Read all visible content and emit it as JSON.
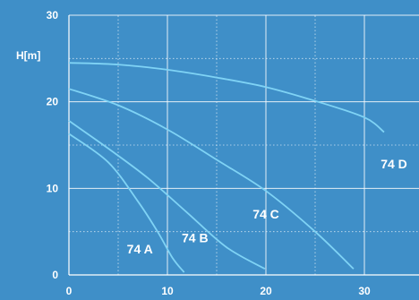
{
  "chart_data": {
    "type": "line",
    "ylabel": "H[m]",
    "xlabel": "",
    "xlim": [
      0,
      32
    ],
    "ylim": [
      0,
      30
    ],
    "x_ticks": [
      0,
      10,
      20,
      30
    ],
    "x_tick_labels": [
      "0",
      "10",
      "20",
      "30"
    ],
    "y_ticks": [
      0,
      10,
      20,
      30
    ],
    "y_tick_labels": [
      "0",
      "10",
      "20",
      "30"
    ],
    "grid": {
      "major_x": [
        10,
        20,
        30
      ],
      "major_y": [
        10,
        20,
        30
      ],
      "minor_x": [
        5,
        15,
        25
      ],
      "minor_y": [
        5,
        15,
        25
      ]
    },
    "colors": {
      "background": "#3f8fc8",
      "curve": "#7fd3f5",
      "grid": "#ffffff",
      "text": "#ffffff"
    },
    "series": [
      {
        "name": "74 A",
        "points": [
          [
            0,
            16.3
          ],
          [
            4,
            13.0
          ],
          [
            7,
            8.5
          ],
          [
            9,
            5.0
          ],
          [
            10.5,
            2.0
          ],
          [
            11.7,
            0.3
          ]
        ]
      },
      {
        "name": "74 B",
        "points": [
          [
            0,
            17.8
          ],
          [
            4,
            14.6
          ],
          [
            8,
            11.2
          ],
          [
            12,
            7.2
          ],
          [
            16,
            3.2
          ],
          [
            19.9,
            0.7
          ]
        ]
      },
      {
        "name": "74 C",
        "points": [
          [
            0,
            21.5
          ],
          [
            5,
            19.6
          ],
          [
            10,
            16.8
          ],
          [
            15,
            13.3
          ],
          [
            20,
            9.7
          ],
          [
            25,
            5.0
          ],
          [
            28.9,
            0.7
          ]
        ]
      },
      {
        "name": "74 D",
        "points": [
          [
            0,
            24.5
          ],
          [
            5,
            24.3
          ],
          [
            10,
            23.7
          ],
          [
            15,
            22.8
          ],
          [
            20,
            21.7
          ],
          [
            25,
            20.1
          ],
          [
            30,
            18.2
          ],
          [
            32,
            16.5
          ]
        ]
      }
    ],
    "labels": [
      {
        "text": "74 A",
        "x": 7.2,
        "y": 2.5
      },
      {
        "text": "74 B",
        "x": 12.8,
        "y": 3.8
      },
      {
        "text": "74 C",
        "x": 20.0,
        "y": 6.5
      },
      {
        "text": "74 D",
        "x": 33.0,
        "y": 12.3
      }
    ]
  }
}
